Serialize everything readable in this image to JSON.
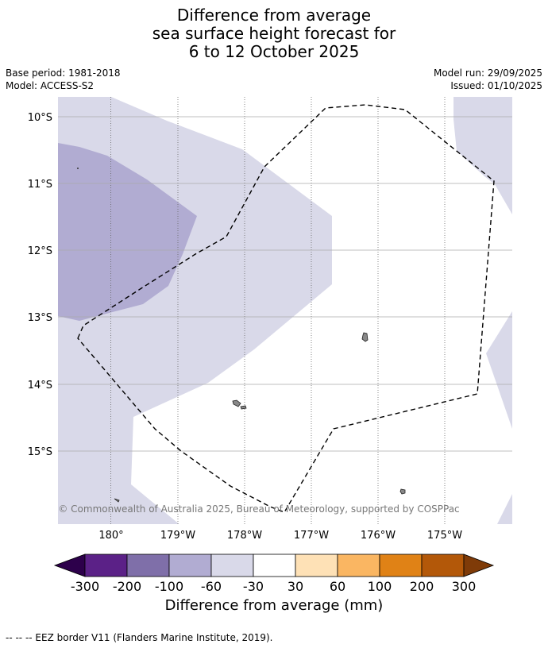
{
  "title": {
    "line1": "Difference from average",
    "line2": "sea surface height forecast for",
    "line3": "6 to 12 October 2025"
  },
  "meta": {
    "base_period": "Base period: 1981-2018",
    "model": "Model: ACCESS-S2",
    "model_run": "Model run: 29/09/2025",
    "issued": "Issued: 01/10/2025"
  },
  "map": {
    "lat_labels": [
      "10°S",
      "11°S",
      "12°S",
      "13°S",
      "14°S",
      "15°S"
    ],
    "lon_labels": [
      "180°",
      "179°W",
      "178°W",
      "177°W",
      "176°W",
      "175°W"
    ],
    "copyright": "© Commonwealth of Australia 2025, Bureau of Meteorology, supported by COSPPac",
    "fill_colors": {
      "minus_100_to_minus_60": "#b1acd2",
      "minus_60_to_minus_30": "#d9d9e9",
      "minus_30_to_30": "#ffffff"
    }
  },
  "colorbar": {
    "title": "Difference from average (mm)",
    "ticks": [
      "-300",
      "-200",
      "-100",
      "-60",
      "-30",
      "30",
      "60",
      "100",
      "200",
      "300"
    ],
    "colors": [
      "#5b2187",
      "#7f6fa9",
      "#b1acd2",
      "#d9d9e9",
      "#ffffff",
      "#fee1b6",
      "#fab662",
      "#e08216",
      "#b35809"
    ],
    "low_extend_color": "#2d004b",
    "high_extend_color": "#7f3b08"
  },
  "footer": {
    "legend": "--  --  -- EEZ border V11 (Flanders Marine Institute, 2019)."
  }
}
